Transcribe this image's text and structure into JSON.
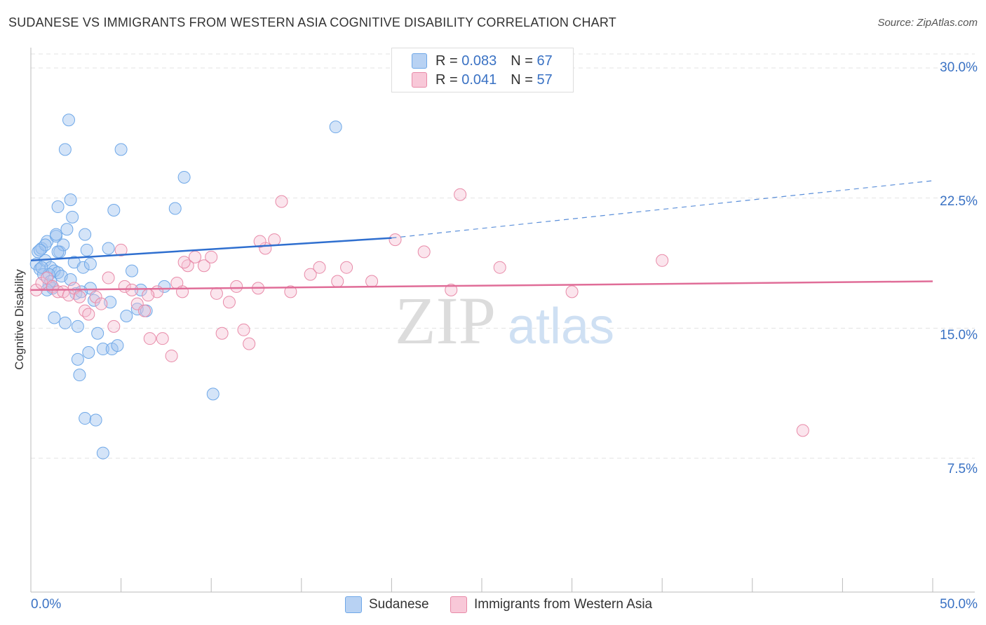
{
  "header": {
    "title": "SUDANESE VS IMMIGRANTS FROM WESTERN ASIA COGNITIVE DISABILITY CORRELATION CHART",
    "source": "Source: ZipAtlas.com"
  },
  "watermark": {
    "zip": "ZIP",
    "atlas": "atlas"
  },
  "legend": {
    "r_label": "R =",
    "n_label": "N =",
    "rows": [
      {
        "r": "0.083",
        "n": "67",
        "color": "#6fa8e8",
        "fill": "#b8d2f3"
      },
      {
        "r": "0.041",
        "n": "57",
        "color": "#e88aa8",
        "fill": "#f8c8d8"
      }
    ]
  },
  "bottom_legend": {
    "series1": "Sudanese",
    "series2": "Immigrants from Western Asia"
  },
  "axis_labels": {
    "x_min": "0.0%",
    "x_max": "50.0%",
    "y_ticks": [
      "30.0%",
      "22.5%",
      "15.0%",
      "7.5%"
    ]
  },
  "chart_data": {
    "type": "scatter",
    "title": "SUDANESE VS IMMIGRANTS FROM WESTERN ASIA COGNITIVE DISABILITY CORRELATION CHART",
    "xlabel": "",
    "ylabel": "Cognitive Disability",
    "xlim": [
      0,
      50
    ],
    "ylim": [
      0,
      31
    ],
    "y_ticks": [
      7.5,
      15.0,
      22.5,
      30.0
    ],
    "grid": true,
    "legend_position": "top-center",
    "series": [
      {
        "name": "Sudanese",
        "color": "#6fa8e8",
        "trend": {
          "x0": 0.0,
          "y0": 18.9,
          "x1": 20.0,
          "y1": 20.2,
          "dashed_to_x": 50.0,
          "dashed_y": 23.5
        },
        "points": [
          [
            0.3,
            18.7
          ],
          [
            0.4,
            19.4
          ],
          [
            0.5,
            18.4
          ],
          [
            0.6,
            19.6
          ],
          [
            0.8,
            18.9
          ],
          [
            0.9,
            20.0
          ],
          [
            0.7,
            18.1
          ],
          [
            1.0,
            17.5
          ],
          [
            1.1,
            18.5
          ],
          [
            1.2,
            17.3
          ],
          [
            1.3,
            18.3
          ],
          [
            1.4,
            20.3
          ],
          [
            1.5,
            18.2
          ],
          [
            1.6,
            19.4
          ],
          [
            1.7,
            18.0
          ],
          [
            1.8,
            19.8
          ],
          [
            1.9,
            15.3
          ],
          [
            2.0,
            20.7
          ],
          [
            2.1,
            27.0
          ],
          [
            2.2,
            22.4
          ],
          [
            1.3,
            15.6
          ],
          [
            1.5,
            22.0
          ],
          [
            1.4,
            20.4
          ],
          [
            1.5,
            19.4
          ],
          [
            2.3,
            21.4
          ],
          [
            2.4,
            18.8
          ],
          [
            2.5,
            17.0
          ],
          [
            2.6,
            15.1
          ],
          [
            2.7,
            12.3
          ],
          [
            3.0,
            20.4
          ],
          [
            3.1,
            19.5
          ],
          [
            3.2,
            13.6
          ],
          [
            3.3,
            17.3
          ],
          [
            3.5,
            16.6
          ],
          [
            3.7,
            14.7
          ],
          [
            4.0,
            13.8
          ],
          [
            4.3,
            19.6
          ],
          [
            4.6,
            21.8
          ],
          [
            2.9,
            18.5
          ],
          [
            1.9,
            25.3
          ],
          [
            3.0,
            9.8
          ],
          [
            3.6,
            9.7
          ],
          [
            4.0,
            7.8
          ],
          [
            4.5,
            13.8
          ],
          [
            4.8,
            14.0
          ],
          [
            5.0,
            25.3
          ],
          [
            5.6,
            18.3
          ],
          [
            5.9,
            16.1
          ],
          [
            6.1,
            17.2
          ],
          [
            6.4,
            16.0
          ],
          [
            7.4,
            17.4
          ],
          [
            8.0,
            21.9
          ],
          [
            8.5,
            23.7
          ],
          [
            10.1,
            11.2
          ],
          [
            16.9,
            26.6
          ],
          [
            0.8,
            19.8
          ],
          [
            1.0,
            18.1
          ],
          [
            1.1,
            17.7
          ],
          [
            0.5,
            19.5
          ],
          [
            0.6,
            18.5
          ],
          [
            0.9,
            17.2
          ],
          [
            2.6,
            13.2
          ],
          [
            3.3,
            18.7
          ],
          [
            2.2,
            17.8
          ],
          [
            2.8,
            17.1
          ],
          [
            4.4,
            16.5
          ],
          [
            5.3,
            15.7
          ]
        ]
      },
      {
        "name": "Immigrants from Western Asia",
        "color": "#e88aa8",
        "trend": {
          "x0": 0.0,
          "y0": 17.2,
          "x1": 50.0,
          "y1": 17.7
        },
        "points": [
          [
            0.3,
            17.2
          ],
          [
            0.6,
            17.6
          ],
          [
            0.9,
            17.9
          ],
          [
            1.2,
            17.4
          ],
          [
            1.5,
            17.1
          ],
          [
            1.8,
            17.1
          ],
          [
            2.1,
            16.9
          ],
          [
            2.4,
            17.3
          ],
          [
            2.7,
            16.8
          ],
          [
            3.0,
            16.0
          ],
          [
            3.2,
            15.8
          ],
          [
            3.6,
            16.8
          ],
          [
            3.9,
            16.4
          ],
          [
            4.3,
            17.9
          ],
          [
            4.6,
            15.1
          ],
          [
            5.0,
            19.5
          ],
          [
            5.2,
            17.4
          ],
          [
            5.6,
            17.2
          ],
          [
            5.9,
            16.4
          ],
          [
            6.3,
            16.0
          ],
          [
            6.6,
            14.4
          ],
          [
            7.0,
            17.1
          ],
          [
            7.3,
            14.4
          ],
          [
            7.8,
            13.4
          ],
          [
            8.1,
            17.6
          ],
          [
            8.4,
            17.1
          ],
          [
            8.7,
            18.6
          ],
          [
            9.1,
            19.1
          ],
          [
            9.6,
            18.6
          ],
          [
            10.0,
            19.1
          ],
          [
            10.3,
            17.0
          ],
          [
            10.6,
            14.7
          ],
          [
            11.0,
            16.5
          ],
          [
            11.4,
            17.4
          ],
          [
            11.8,
            14.9
          ],
          [
            12.1,
            14.1
          ],
          [
            12.6,
            17.3
          ],
          [
            13.0,
            19.6
          ],
          [
            13.5,
            20.1
          ],
          [
            13.9,
            22.3
          ],
          [
            14.4,
            17.1
          ],
          [
            15.5,
            18.1
          ],
          [
            16.0,
            18.5
          ],
          [
            17.0,
            17.7
          ],
          [
            17.5,
            18.5
          ],
          [
            18.9,
            17.7
          ],
          [
            20.2,
            20.1
          ],
          [
            21.8,
            19.4
          ],
          [
            23.3,
            17.2
          ],
          [
            23.8,
            22.7
          ],
          [
            26.0,
            18.5
          ],
          [
            30.0,
            17.1
          ],
          [
            35.0,
            18.9
          ],
          [
            42.8,
            9.1
          ],
          [
            12.7,
            20.0
          ],
          [
            8.5,
            18.8
          ],
          [
            6.5,
            16.9
          ]
        ]
      }
    ]
  }
}
